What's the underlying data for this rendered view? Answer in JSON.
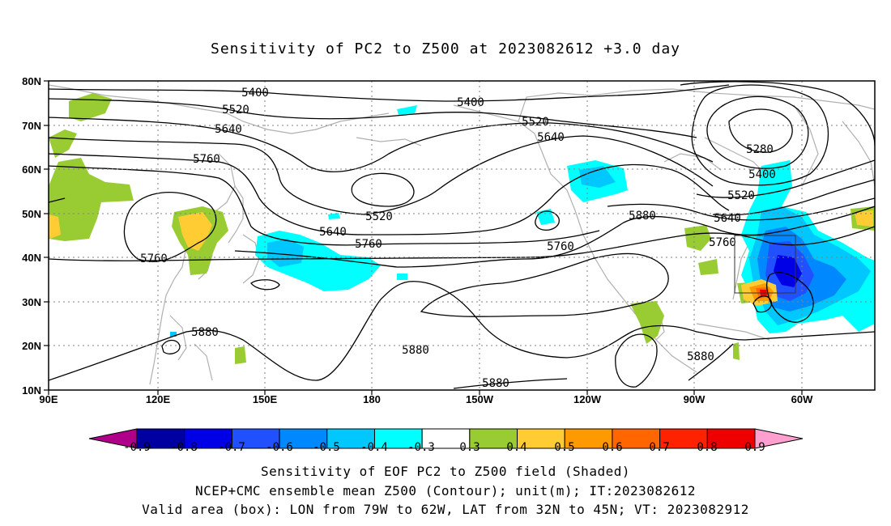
{
  "title": "Sensitivity of PC2 to Z500 at 2023082612 +3.0 day",
  "map": {
    "lon_ticks": [
      "90E",
      "120E",
      "150E",
      "180",
      "150W",
      "120W",
      "90W",
      "60W"
    ],
    "lat_ticks": [
      "80N",
      "70N",
      "60N",
      "50N",
      "40N",
      "30N",
      "20N",
      "10N"
    ],
    "contour_labels": [
      "5400",
      "5520",
      "5640",
      "5760",
      "5400",
      "5520",
      "5640",
      "5520",
      "5640",
      "5760",
      "5760",
      "5880",
      "5760",
      "5280",
      "5400",
      "5520",
      "5640",
      "5760",
      "5880",
      "5880",
      "5880",
      "5880"
    ],
    "valid_box": {
      "lon_west": "79W",
      "lon_east": "62W",
      "lat_south": "32N",
      "lat_north": "45N"
    }
  },
  "colorbar": {
    "labels": [
      "-0.9",
      "-0.8",
      "-0.7",
      "-0.6",
      "-0.5",
      "-0.4",
      "-0.3",
      "0.3",
      "0.4",
      "0.5",
      "0.6",
      "0.7",
      "0.8",
      "0.9"
    ],
    "colors": [
      "#0000a0",
      "#0000e6",
      "#2050ff",
      "#0088ff",
      "#00c8ff",
      "#00ffff",
      "#ffffff",
      "#99cc33",
      "#ffcc33",
      "#ff9900",
      "#ff6600",
      "#ff2200",
      "#ee0000"
    ],
    "low_end_color": "#b0008a",
    "high_end_color": "#ff9fcf"
  },
  "captions": {
    "line1": "Sensitivity of EOF PC2 to Z500 field (Shaded)",
    "line2": "NCEP+CMC ensemble mean Z500 (Contour); unit(m); IT:2023082612",
    "line3": "Valid area (box): LON from 79W to 62W, LAT from 32N to 45N; VT: 2023082912"
  }
}
